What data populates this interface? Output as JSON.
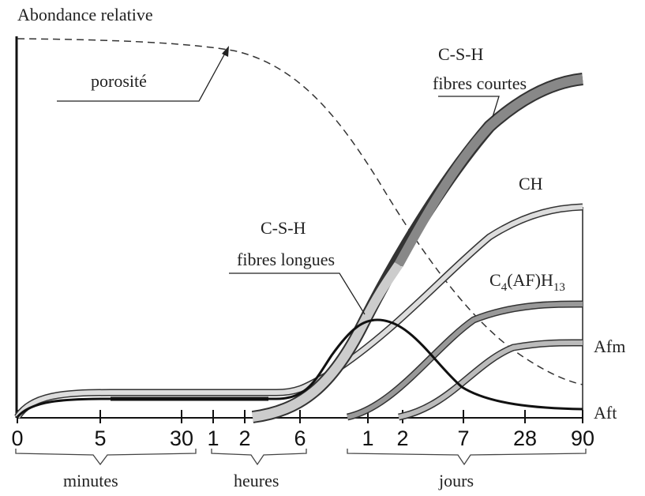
{
  "header": {
    "title": "Abondance relative"
  },
  "labels": {
    "porosity": "porosité",
    "csh_short_1": "C-S-H",
    "csh_short_2": "fibres courtes",
    "ch": "CH",
    "csh_long_1": "C-S-H",
    "csh_long_2": "fibres longues",
    "c4af_main_1": "C",
    "c4af_sub_1": "4",
    "c4af_main_2": "(AF)H",
    "c4af_sub_2": "13",
    "afm": "Afm",
    "aft": "Aft"
  },
  "x_axis": {
    "ticks": [
      "0",
      "5",
      "30",
      "1",
      "2",
      "6",
      "1",
      "2",
      "7",
      "28",
      "90"
    ],
    "groups": [
      "minutes",
      "heures",
      "jours"
    ]
  }
}
